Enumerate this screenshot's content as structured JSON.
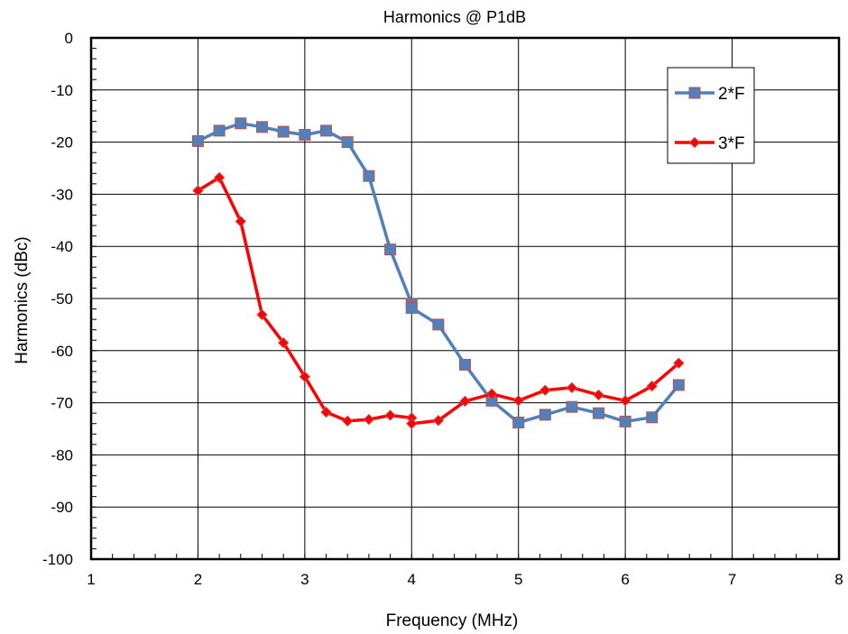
{
  "chart_data": {
    "type": "line",
    "title": "Harmonics @ P1dB",
    "xlabel": "Frequency (MHz)",
    "ylabel": "Harmonics (dBc)",
    "xlim": [
      1,
      8
    ],
    "ylim": [
      -100,
      0
    ],
    "x_ticks": [
      1,
      2,
      3,
      4,
      5,
      6,
      7,
      8
    ],
    "y_ticks": [
      0,
      -10,
      -20,
      -30,
      -40,
      -50,
      -60,
      -70,
      -80,
      -90,
      -100
    ],
    "grid": true,
    "legend_position": "top-right",
    "series": [
      {
        "name": "2*F",
        "color": "#4f81bd",
        "marker": "square",
        "marker_color": "#4f81bd",
        "marker_edge": "#c0504d",
        "x": [
          2,
          2.2,
          2.4,
          2.6,
          2.8,
          3,
          3.2,
          3.4,
          3.6,
          3.8,
          4,
          4,
          4.25,
          4.5,
          4.75,
          5,
          5.25,
          5.5,
          5.75,
          6,
          6.25,
          6.5
        ],
        "y": [
          -19.8,
          -17.8,
          -16.4,
          -17.1,
          -18,
          -18.6,
          -17.8,
          -20,
          -26.5,
          -40.6,
          -51,
          -51.8,
          -55,
          -62.7,
          -69.6,
          -73.8,
          -72.3,
          -70.8,
          -72,
          -73.6,
          -72.8,
          -66.6
        ]
      },
      {
        "name": "3*F",
        "color": "#ff0000",
        "marker": "diamond",
        "marker_color": "#ff0000",
        "marker_edge": "#c0504d",
        "x": [
          2,
          2.2,
          2.4,
          2.6,
          2.8,
          3,
          3.2,
          3.4,
          3.6,
          3.8,
          4,
          4,
          4.25,
          4.5,
          4.75,
          5,
          5.25,
          5.5,
          5.75,
          6,
          6.25,
          6.5
        ],
        "y": [
          -29.3,
          -26.8,
          -35.2,
          -53.1,
          -58.5,
          -65,
          -71.8,
          -73.5,
          -73.2,
          -72.4,
          -72.9,
          -74,
          -73.4,
          -69.7,
          -68.3,
          -69.6,
          -67.6,
          -67.1,
          -68.5,
          -69.6,
          -66.8,
          -62.4
        ]
      }
    ]
  }
}
